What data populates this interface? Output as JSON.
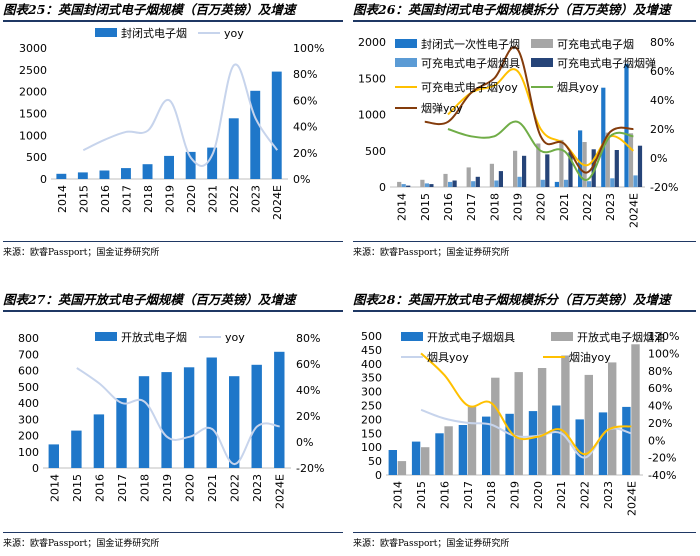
{
  "source": "来源：欧睿Passport；国金证券研究所",
  "chart_data": [
    {
      "id": "fig25",
      "title": "图表25：英国封闭式电子烟规模（百万英镑）及增速",
      "type": "bar",
      "categories": [
        "2014",
        "2015",
        "2016",
        "2017",
        "2018",
        "2019",
        "2020",
        "2021",
        "2022",
        "2023",
        "2024E"
      ],
      "series": [
        {
          "name": "封闭式电子烟",
          "kind": "bar",
          "axis": "left",
          "color": "#1f77c9",
          "values": [
            120,
            150,
            195,
            250,
            340,
            530,
            620,
            720,
            1390,
            2020,
            2460
          ]
        },
        {
          "name": "yoy",
          "kind": "line",
          "axis": "right",
          "color": "#c7d4ec",
          "values": [
            null,
            22,
            30,
            36,
            37,
            60,
            16,
            19,
            87,
            46,
            22
          ]
        }
      ],
      "ylim_left": [
        0,
        3000
      ],
      "yticks_left": [
        0,
        500,
        1000,
        1500,
        2000,
        2500,
        3000
      ],
      "ylim_right": [
        0,
        100
      ],
      "yticks_right": [
        0,
        20,
        40,
        60,
        80,
        100
      ],
      "right_format": "percent"
    },
    {
      "id": "fig26",
      "title": "图表26：英国封闭式电子烟规模拆分（百万英镑）及增速",
      "type": "bar",
      "categories": [
        "2014",
        "2015",
        "2016",
        "2017",
        "2018",
        "2019",
        "2020",
        "2021",
        "2022",
        "2023",
        "2024E"
      ],
      "series": [
        {
          "name": "封闭式一次性电子烟",
          "kind": "bar",
          "axis": "left",
          "color": "#1f77c9",
          "values": [
            0,
            0,
            0,
            0,
            0,
            0,
            0,
            70,
            780,
            1370,
            1700
          ]
        },
        {
          "name": "可充电式电子烟",
          "kind": "bar",
          "axis": "left",
          "color": "#a6a6a6",
          "values": [
            70,
            100,
            180,
            270,
            320,
            500,
            600,
            650,
            620,
            750,
            740
          ]
        },
        {
          "name": "可充电式电子烟烟具",
          "kind": "bar",
          "axis": "left",
          "color": "#5b9bd5",
          "values": [
            40,
            50,
            70,
            80,
            90,
            140,
            100,
            100,
            80,
            120,
            160
          ]
        },
        {
          "name": "可充电式电子烟烟弹",
          "kind": "bar",
          "axis": "left",
          "color": "#264478",
          "values": [
            20,
            40,
            90,
            140,
            220,
            430,
            450,
            480,
            520,
            510,
            570
          ]
        },
        {
          "name": "可充电式电子烟yoy",
          "kind": "line",
          "axis": "right",
          "color": "#ffc000",
          "values": [
            null,
            null,
            30,
            45,
            50,
            60,
            20,
            10,
            -5,
            15,
            5
          ]
        },
        {
          "name": "烟具yoy",
          "kind": "line",
          "axis": "right",
          "color": "#70ad47",
          "values": [
            null,
            null,
            20,
            15,
            15,
            25,
            5,
            5,
            -15,
            15,
            15
          ]
        },
        {
          "name": "烟弹yoy",
          "kind": "line",
          "axis": "right",
          "color": "#843c0c",
          "values": [
            null,
            25,
            25,
            45,
            55,
            75,
            15,
            10,
            -10,
            18,
            20
          ]
        }
      ],
      "ylim_left": [
        0,
        2000
      ],
      "yticks_left": [
        0,
        500,
        1000,
        1500,
        2000
      ],
      "ylim_right": [
        -20,
        80
      ],
      "yticks_right": [
        -20,
        0,
        20,
        40,
        60,
        80
      ],
      "right_format": "percent"
    },
    {
      "id": "fig27",
      "title": "图表27：英国开放式电子烟规模（百万英镑）及增速",
      "type": "bar",
      "categories": [
        "2014",
        "2015",
        "2016",
        "2017",
        "2018",
        "2019",
        "2020",
        "2021",
        "2022",
        "2023",
        "2024E"
      ],
      "series": [
        {
          "name": "开放式电子烟",
          "kind": "bar",
          "axis": "left",
          "color": "#1f77c9",
          "values": [
            145,
            230,
            330,
            430,
            565,
            590,
            620,
            680,
            565,
            635,
            715
          ]
        },
        {
          "name": "yoy",
          "kind": "line",
          "axis": "right",
          "color": "#c7d4ec",
          "values": [
            null,
            57,
            45,
            30,
            31,
            4,
            4,
            10,
            -17,
            12,
            12
          ]
        }
      ],
      "ylim_left": [
        0,
        800
      ],
      "yticks_left": [
        0,
        100,
        200,
        300,
        400,
        500,
        600,
        700,
        800
      ],
      "ylim_right": [
        -20,
        80
      ],
      "yticks_right": [
        -20,
        0,
        20,
        40,
        60,
        80
      ],
      "right_format": "percent"
    },
    {
      "id": "fig28",
      "title": "图表28：英国开放式电子烟规模拆分（百万英镑）及增速",
      "type": "bar",
      "categories": [
        "2014",
        "2015",
        "2016",
        "2017",
        "2018",
        "2019",
        "2020",
        "2021",
        "2022",
        "2023",
        "2024E"
      ],
      "series": [
        {
          "name": "开放式电子烟烟具",
          "kind": "bar",
          "axis": "left",
          "color": "#1f77c9",
          "values": [
            90,
            120,
            150,
            180,
            210,
            220,
            230,
            250,
            200,
            225,
            245
          ]
        },
        {
          "name": "开放式电子烟烟油",
          "kind": "bar",
          "axis": "left",
          "color": "#a6a6a6",
          "values": [
            50,
            100,
            175,
            245,
            350,
            370,
            385,
            430,
            360,
            405,
            470
          ]
        },
        {
          "name": "烟具yoy",
          "kind": "line",
          "axis": "right",
          "color": "#c7d4ec",
          "values": [
            null,
            35,
            25,
            20,
            18,
            5,
            5,
            8,
            -20,
            12,
            8
          ]
        },
        {
          "name": "烟油yoy",
          "kind": "line",
          "axis": "right",
          "color": "#ffc000",
          "values": [
            null,
            100,
            75,
            40,
            43,
            5,
            4,
            12,
            -16,
            12,
            16
          ]
        }
      ],
      "ylim_left": [
        0,
        500
      ],
      "yticks_left": [
        0,
        50,
        100,
        150,
        200,
        250,
        300,
        350,
        400,
        450,
        500
      ],
      "ylim_right": [
        -40,
        120
      ],
      "yticks_right": [
        -40,
        -20,
        0,
        20,
        40,
        60,
        80,
        100,
        120
      ],
      "right_format": "percent"
    }
  ]
}
